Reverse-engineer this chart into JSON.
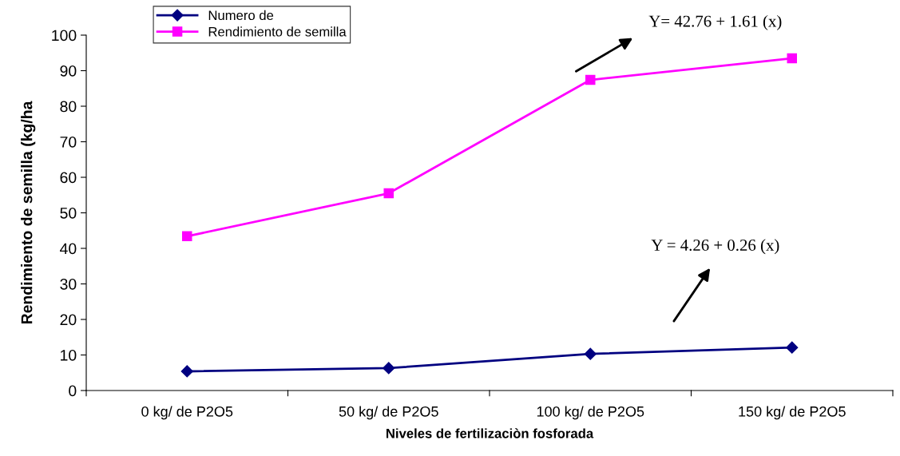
{
  "chart_data": {
    "type": "line",
    "xlabel": "Niveles de fertilizaciòn fosforada",
    "ylabel": "Rendimiento de semilla (kg/ha",
    "categories": [
      "0 kg/ de P2O5",
      "50 kg/ de P2O5",
      "100 kg/ de P2O5",
      "150 kg/ de P2O5"
    ],
    "series": [
      {
        "name": "Numero de",
        "color": "#000080",
        "marker": "diamond",
        "values": [
          5.4,
          6.3,
          10.3,
          12.1
        ]
      },
      {
        "name": "Rendimiento de semilla",
        "color": "#ff00ff",
        "marker": "square",
        "values": [
          43.4,
          55.5,
          87.4,
          93.5
        ]
      }
    ],
    "ylim": [
      0,
      100
    ],
    "yticks": [
      0,
      10,
      20,
      30,
      40,
      50,
      60,
      70,
      80,
      90,
      100
    ],
    "annotations": [
      "Y= 42.76 + 1.61 (x)",
      "Y = 4.26 + 0.26 (x)"
    ],
    "grid": false,
    "legend": "top left",
    "line_style": "solid"
  }
}
